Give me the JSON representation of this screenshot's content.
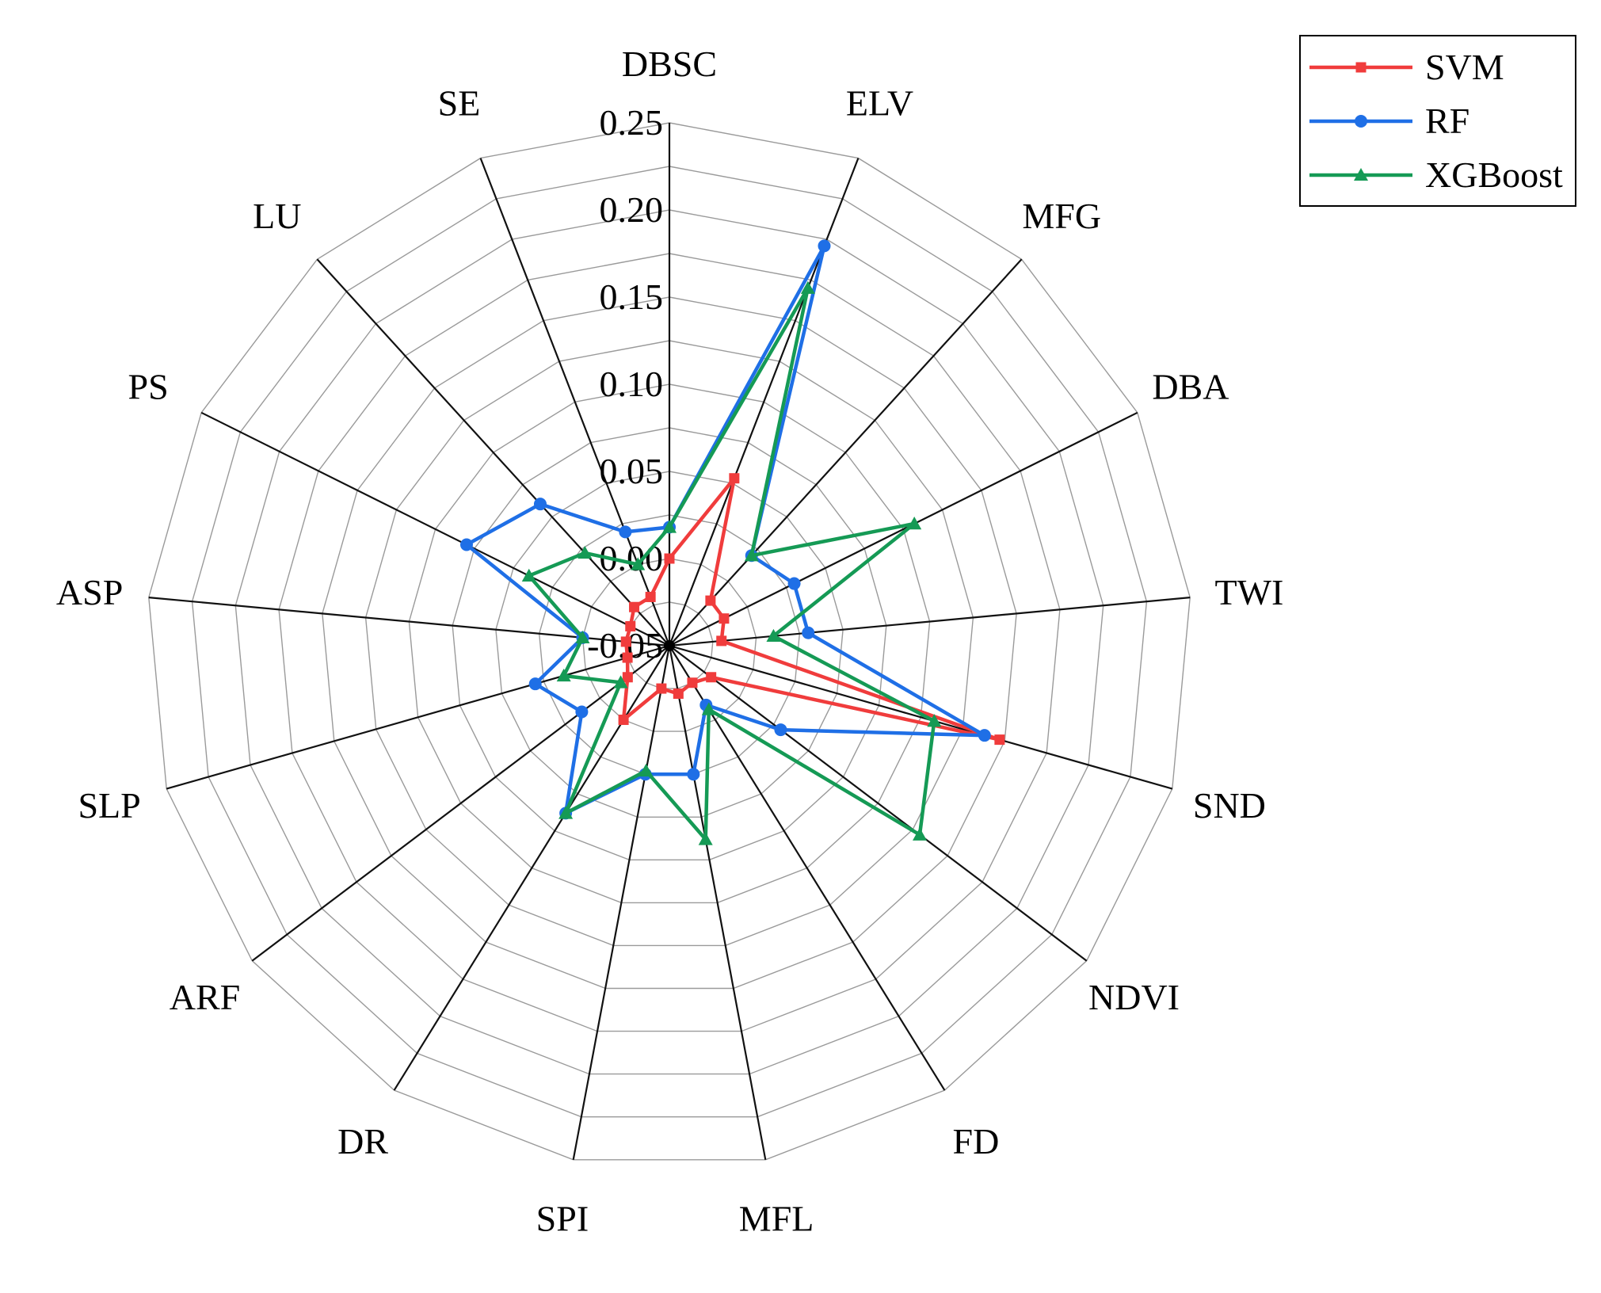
{
  "chart_data": {
    "type": "radar",
    "title": "",
    "axes": [
      "DBSC",
      "ELV",
      "MFG",
      "DBA",
      "TWI",
      "SND",
      "NDVI",
      "FD",
      "MFL",
      "SPI",
      "DR",
      "ARF",
      "SLP",
      "ASP",
      "PS",
      "LU",
      "SE"
    ],
    "range": [
      -0.05,
      0.25
    ],
    "ticks": [
      -0.05,
      0.0,
      0.05,
      0.1,
      0.15,
      0.2,
      0.25
    ],
    "tick_labels": [
      "-0.05",
      "0.00",
      "0.05",
      "0.10",
      "0.15",
      "0.20",
      "0.25"
    ],
    "grid_rings": 12,
    "legend_position": "top-right",
    "series": [
      {
        "name": "SVM",
        "color": "#f03c3c",
        "marker": "square",
        "values": [
          0.0,
          0.053,
          -0.015,
          -0.015,
          -0.02,
          0.147,
          -0.02,
          -0.025,
          -0.022,
          -0.025,
          0.0,
          -0.02,
          -0.025,
          -0.025,
          -0.025,
          -0.02,
          -0.02
        ]
      },
      {
        "name": "RF",
        "color": "#1f6fe6",
        "marker": "circle",
        "values": [
          0.018,
          0.196,
          0.02,
          0.03,
          0.03,
          0.138,
          0.03,
          -0.01,
          0.025,
          0.025,
          0.063,
          0.013,
          0.03,
          0.0,
          0.08,
          0.06,
          0.02
        ]
      },
      {
        "name": "XGBoost",
        "color": "#159a55",
        "marker": "triangle",
        "values": [
          0.018,
          0.17,
          0.02,
          0.107,
          0.01,
          0.108,
          0.13,
          -0.007,
          0.063,
          0.023,
          0.063,
          -0.015,
          0.013,
          0.0,
          0.04,
          0.022,
          0.0
        ]
      }
    ]
  }
}
